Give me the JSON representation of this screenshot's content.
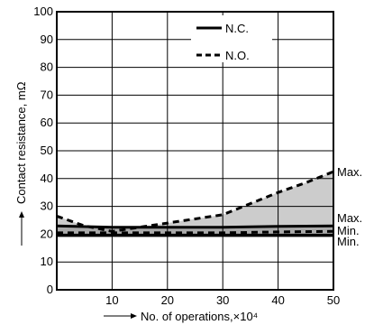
{
  "chart_data": {
    "type": "line",
    "title": "",
    "xlabel": "No. of operations,×10⁴",
    "ylabel": "Contact resistance, mΩ",
    "xlim": [
      0,
      50
    ],
    "ylim": [
      0,
      100
    ],
    "x_ticks": [
      0,
      10,
      20,
      30,
      40,
      50
    ],
    "y_ticks": [
      0,
      10,
      20,
      30,
      40,
      50,
      60,
      70,
      80,
      90,
      100
    ],
    "grid": true,
    "legend_position": "top-right",
    "legend": [
      "N.C.",
      "N.O."
    ],
    "series": [
      {
        "name": "N.C.",
        "style": "solid",
        "color": "#000000",
        "bands": [
          {
            "label": "Max.",
            "x": [
              0,
              10,
              20,
              30,
              40,
              50
            ],
            "y": [
              23,
              22.5,
              22.5,
              22.5,
              22.8,
              23
            ]
          },
          {
            "label": "Min.",
            "x": [
              0,
              10,
              20,
              30,
              40,
              50
            ],
            "y": [
              19.5,
              19.5,
              19.5,
              19.5,
              19.5,
              19.5
            ]
          }
        ]
      },
      {
        "name": "N.O.",
        "style": "dashed",
        "color": "#000000",
        "bands": [
          {
            "label": "Max.",
            "x": [
              0,
              5,
              10,
              15,
              20,
              25,
              30,
              35,
              40,
              45,
              50
            ],
            "y": [
              26.5,
              23,
              21,
              22.5,
              24,
              25.5,
              27,
              31,
              35,
              38.5,
              42.5
            ]
          },
          {
            "label": "Min.",
            "x": [
              0,
              10,
              20,
              30,
              40,
              50
            ],
            "y": [
              20.5,
              20.5,
              20.5,
              20.5,
              20.8,
              21
            ]
          }
        ]
      }
    ],
    "annotations": [
      "Max.",
      "Max.",
      "Min.",
      "Min."
    ],
    "fill_colors": {
      "light": "#cccccc",
      "dark": "#8c8c8c"
    }
  }
}
